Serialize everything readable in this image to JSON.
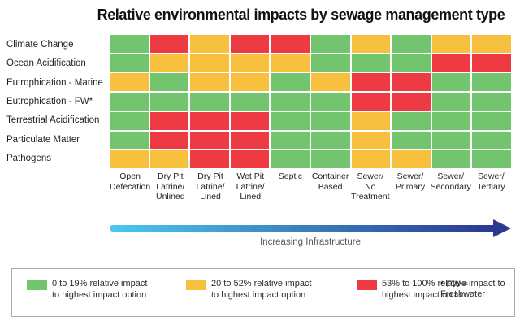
{
  "title": "Relative environmental impacts by sewage management type",
  "chart_data": {
    "type": "heatmap",
    "title": "Relative environmental impacts by sewage management type",
    "rows": [
      "Climate Change",
      "Ocean Acidification",
      "Eutrophication - Marine",
      "Eutrophication - FW*",
      "Terrestrial Acidification",
      "Particulate Matter",
      "Pathogens"
    ],
    "columns": [
      "Open\nDefecation",
      "Dry Pit\nLatrine/\nUnlined",
      "Dry Pit\nLatrine/\nLined",
      "Wet Pit\nLatrine/\nLined",
      "Septic",
      "Container\nBased",
      "Sewer/\nNo\nTreatment",
      "Sewer/\nPrimary",
      "Sewer/\nSecondary",
      "Sewer/\nTertiary"
    ],
    "values": [
      [
        "green",
        "red",
        "yellow",
        "red",
        "red",
        "green",
        "yellow",
        "green",
        "yellow",
        "yellow"
      ],
      [
        "green",
        "yellow",
        "yellow",
        "yellow",
        "yellow",
        "green",
        "green",
        "green",
        "red",
        "red"
      ],
      [
        "yellow",
        "green",
        "yellow",
        "yellow",
        "green",
        "yellow",
        "red",
        "red",
        "green",
        "green"
      ],
      [
        "green",
        "green",
        "green",
        "green",
        "green",
        "green",
        "red",
        "red",
        "green",
        "green"
      ],
      [
        "green",
        "red",
        "red",
        "red",
        "green",
        "green",
        "yellow",
        "green",
        "green",
        "green"
      ],
      [
        "green",
        "red",
        "red",
        "red",
        "green",
        "green",
        "yellow",
        "green",
        "green",
        "green"
      ],
      [
        "yellow",
        "yellow",
        "red",
        "red",
        "green",
        "green",
        "yellow",
        "yellow",
        "green",
        "green"
      ]
    ],
    "value_meaning": {
      "green": "0 to 19% relative impact to highest impact option",
      "yellow": "20 to 52% relative impact to highest impact option",
      "red": "53% to 100% relative impact to highest impact option"
    },
    "legend_position": "bottom",
    "grid": "white 2px gaps between cells"
  },
  "arrow": {
    "label": "Increasing Infrastructure"
  },
  "legend": {
    "items": [
      {
        "color_key": "green",
        "label": "0 to 19% relative impact\nto highest impact option"
      },
      {
        "color_key": "yellow",
        "label": "20 to 52% relative impact\nto highest impact option"
      },
      {
        "color_key": "red",
        "label": "53% to 100% relative impact to\nhighest impact option"
      }
    ],
    "footnote": "* FW = Freshwater"
  },
  "colors": {
    "green": "#72c46e",
    "yellow": "#f7c03f",
    "red": "#ee3b43",
    "arrow_start": "#4ac8ed",
    "arrow_end": "#2b3990",
    "legend_border": "#a8aaad",
    "text_dark": "#231f20",
    "text_gray": "#58595b"
  }
}
